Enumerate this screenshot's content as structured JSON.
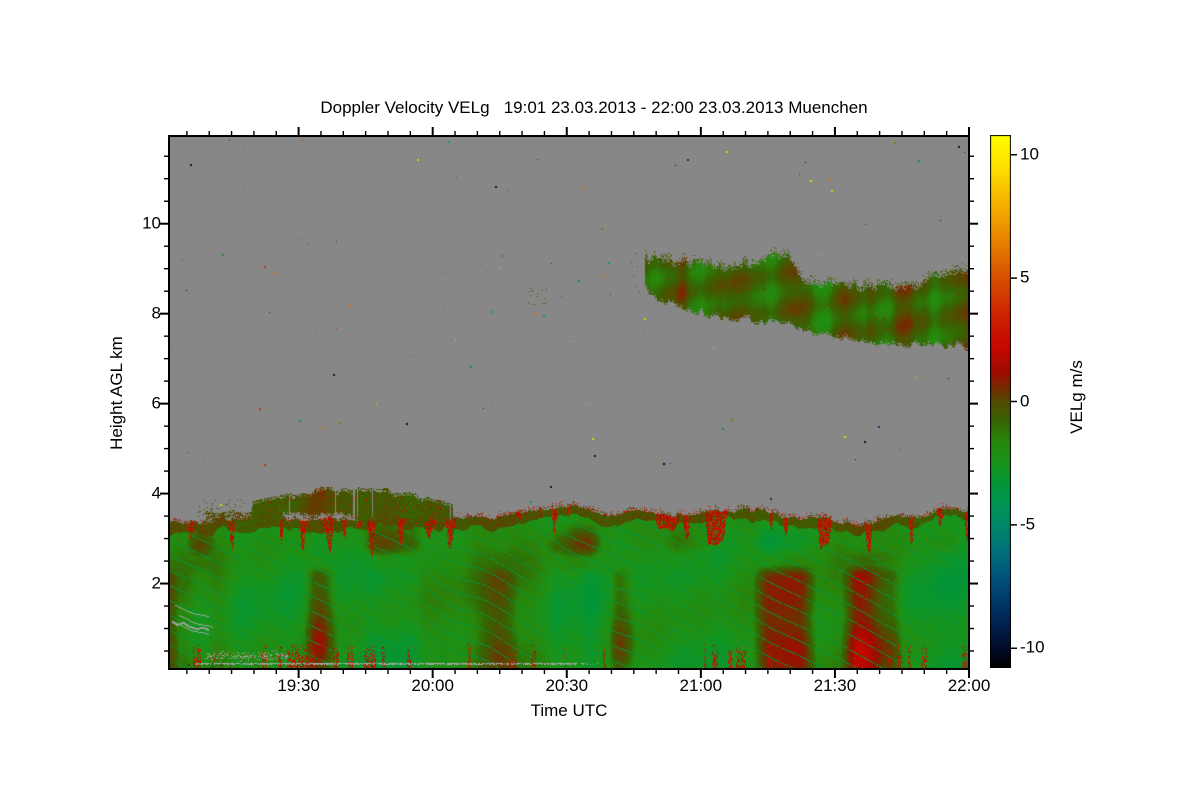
{
  "title": "Doppler Velocity VELg   19:01 23.03.2013 - 22:00 23.03.2013 Muenchen",
  "figure": {
    "bg": "#ffffff",
    "plot_bg": "#878787",
    "axis_color": "#000000"
  },
  "x_axis": {
    "label": "Time UTC",
    "start_utc": "19:01",
    "end_utc": "22:00",
    "duration_min": 179,
    "minor_step_min": 5,
    "ticks": [
      {
        "label": "19:30",
        "min": 29
      },
      {
        "label": "20:00",
        "min": 59
      },
      {
        "label": "20:30",
        "min": 89
      },
      {
        "label": "21:00",
        "min": 119
      },
      {
        "label": "21:30",
        "min": 149
      },
      {
        "label": "22:00",
        "min": 179
      }
    ]
  },
  "y_axis": {
    "label": "Height AGL km",
    "range_km": [
      0.1,
      11.95
    ],
    "minor_step_km": 0.5,
    "ticks": [
      {
        "label": "2",
        "km": 2
      },
      {
        "label": "4",
        "km": 4
      },
      {
        "label": "6",
        "km": 6
      },
      {
        "label": "8",
        "km": 8
      },
      {
        "label": "10",
        "km": 10
      }
    ]
  },
  "colorbar": {
    "label": "VELg m/s",
    "range": [
      -10.8,
      10.8
    ],
    "ticks": [
      {
        "label": "10",
        "value": 10
      },
      {
        "label": "5",
        "value": 5
      },
      {
        "label": "0",
        "value": 0
      },
      {
        "label": "-5",
        "value": -5
      },
      {
        "label": "-10",
        "value": -10
      }
    ],
    "stops": [
      {
        "v": 10.8,
        "c": "#ffff00"
      },
      {
        "v": 9.5,
        "c": "#ffe100"
      },
      {
        "v": 8.0,
        "c": "#f6b200"
      },
      {
        "v": 6.5,
        "c": "#e88200"
      },
      {
        "v": 5.0,
        "c": "#d75000"
      },
      {
        "v": 3.5,
        "c": "#cd2300"
      },
      {
        "v": 2.2,
        "c": "#c60800"
      },
      {
        "v": 1.2,
        "c": "#a00c00"
      },
      {
        "v": 0.5,
        "c": "#732d00"
      },
      {
        "v": 0.0,
        "c": "#554b00"
      },
      {
        "v": -0.8,
        "c": "#376404"
      },
      {
        "v": -1.6,
        "c": "#28870c"
      },
      {
        "v": -2.4,
        "c": "#1c9419"
      },
      {
        "v": -3.2,
        "c": "#059634"
      },
      {
        "v": -4.1,
        "c": "#009552"
      },
      {
        "v": -5.0,
        "c": "#008868"
      },
      {
        "v": -6.0,
        "c": "#00737a"
      },
      {
        "v": -7.0,
        "c": "#00587c"
      },
      {
        "v": -8.0,
        "c": "#003c6a"
      },
      {
        "v": -9.0,
        "c": "#022250"
      },
      {
        "v": -10.0,
        "c": "#020c28"
      },
      {
        "v": -10.8,
        "c": "#000000"
      }
    ]
  },
  "chart_data": {
    "type": "heatmap",
    "title": "Doppler Velocity VELg   19:01 23.03.2013 - 22:00 23.03.2013 Muenchen",
    "xlabel": "Time UTC",
    "ylabel": "Height AGL km",
    "x_range_utc": [
      "19:01",
      "22:00"
    ],
    "y_range_km": [
      0.1,
      11.95
    ],
    "colorbar_label": "VELg m/s",
    "colorbar_range_ms": [
      -10.8,
      10.8
    ],
    "no_data_color": "#878787",
    "station": "Muenchen",
    "date": "23.03.2013",
    "regions": [
      {
        "name": "boundary-layer",
        "time_utc": [
          "19:01",
          "22:00"
        ],
        "height_km": [
          0.1,
          3.4
        ],
        "top_km_variation": [
          3.2,
          3.65
        ],
        "dominant_velocity_ms": -2,
        "features": "green downdraft field, red updraft streaks +1..+3 m/s near top and bottom, teal filaments -3.5 m/s, olive band at top edge"
      },
      {
        "name": "aerosol-plume",
        "time_utc": [
          "19:22",
          "20:04"
        ],
        "height_km": [
          3.5,
          4.15
        ],
        "dominant_velocity_ms": -0.5,
        "features": "olive-green ragged blob floating just above boundary-layer top"
      },
      {
        "name": "elevated-cloud",
        "time_utc": [
          "20:48",
          "22:00"
        ],
        "cloud_top_km": [
          9.4,
          8.6
        ],
        "cloud_base_km": [
          8.5,
          7.2
        ],
        "dominant_velocity_ms": -0.7,
        "features": "olive/dark-green layer descending with time, brownish striations, ragged edges"
      },
      {
        "name": "noise-speckles",
        "description": "isolated random colored pixels scattered through the gray no-data region",
        "velocity_range_ms": [
          -10,
          10
        ]
      },
      {
        "name": "ground-artifacts",
        "description": "light gray speckled line near 0.2 km, gray squiggle and speckle band at lower left, red micro-streaks along bottom"
      }
    ],
    "speckle_colors": [
      "#d8d800",
      "#d07818",
      "#c03010",
      "#0a9a78",
      "#12306a",
      "#101010",
      "#7a7a10",
      "#2a8a2a"
    ]
  }
}
